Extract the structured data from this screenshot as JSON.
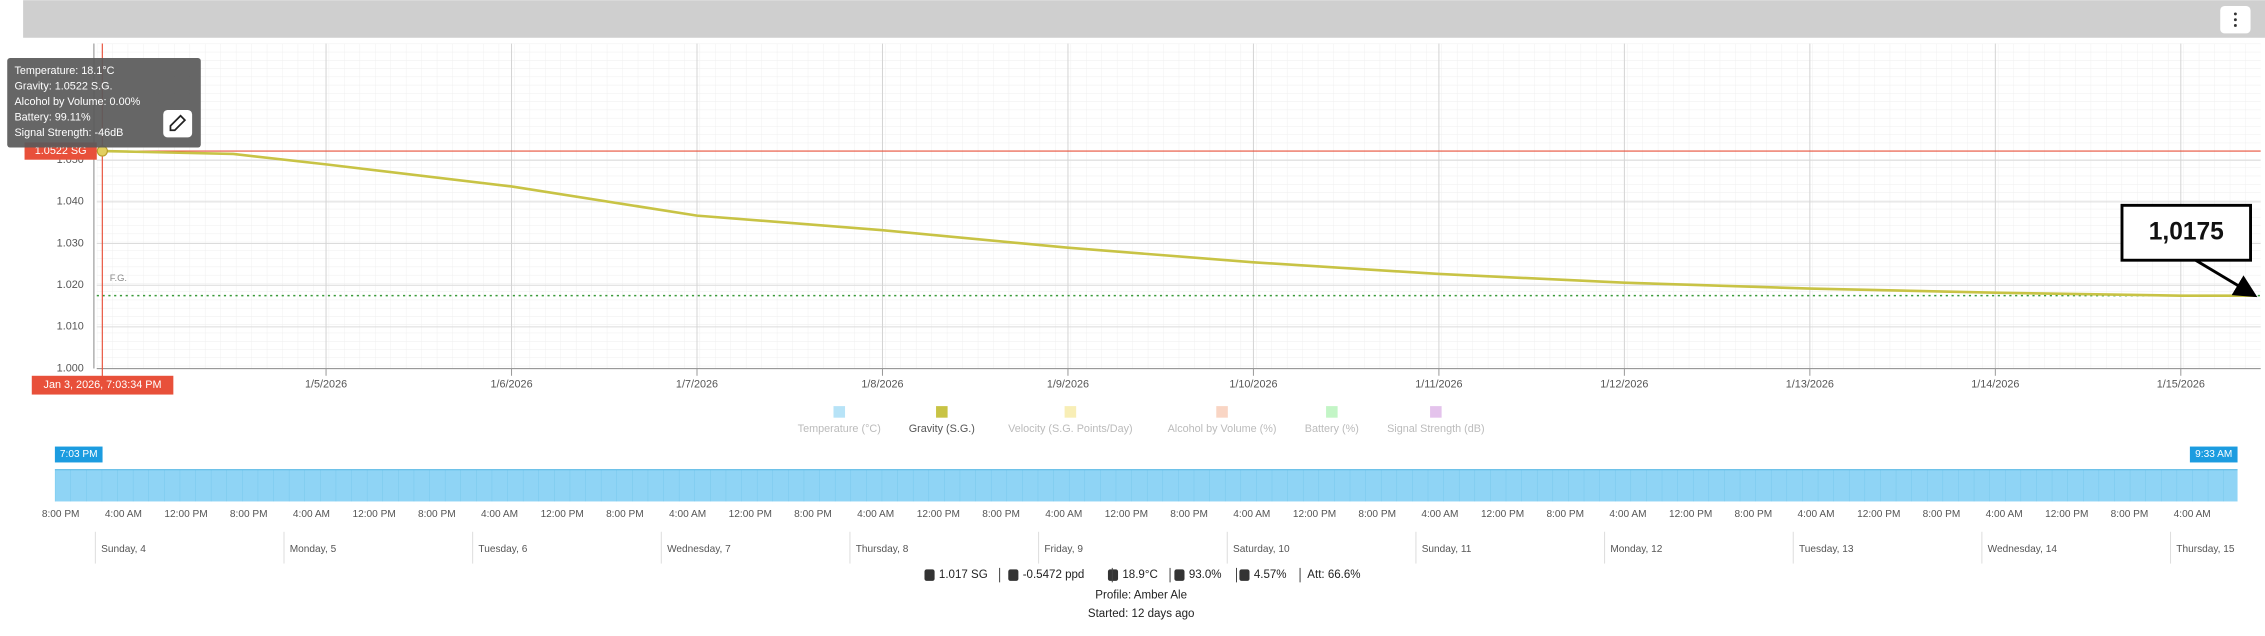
{
  "chart_data": {
    "type": "line",
    "x": [
      "2026-01-03T19:03",
      "2026-01-04T00:00",
      "2026-01-04T12:00",
      "2026-01-05T00:00",
      "2026-01-06T00:00",
      "2026-01-07T00:00",
      "2026-01-08T00:00",
      "2026-01-09T00:00",
      "2026-01-10T00:00",
      "2026-01-11T00:00",
      "2026-01-12T00:00",
      "2026-01-13T00:00",
      "2026-01-14T00:00",
      "2026-01-15T00:00",
      "2026-01-15T09:33"
    ],
    "series": [
      {
        "name": "Temperature (°C)",
        "color": "#b7e3f7",
        "visible": false
      },
      {
        "name": "Gravity (S.G.)",
        "color": "#c8c345",
        "visible": true,
        "values": [
          1.0522,
          1.052,
          1.0515,
          1.049,
          1.0437,
          1.0367,
          1.0332,
          1.029,
          1.0255,
          1.0227,
          1.0206,
          1.0192,
          1.0182,
          1.0175,
          1.0175
        ]
      },
      {
        "name": "Velocity (S.G. Points/Day)",
        "color": "#f8eeb6",
        "visible": false
      },
      {
        "name": "Alcohol by Volume (%)",
        "color": "#f9d5c4",
        "visible": false
      },
      {
        "name": "Battery (%)",
        "color": "#c3f5c6",
        "visible": false
      },
      {
        "name": "Signal Strength (dB)",
        "color": "#e4c3ec",
        "visible": false
      }
    ],
    "xlim": [
      "2026-01-03T18:20",
      "2026-01-15T10:20"
    ],
    "xticks": [
      {
        "value": "2026-01-05T00:00",
        "label": "1/5/2026"
      },
      {
        "value": "2026-01-06T00:00",
        "label": "1/6/2026"
      },
      {
        "value": "2026-01-07T00:00",
        "label": "1/7/2026"
      },
      {
        "value": "2026-01-08T00:00",
        "label": "1/8/2026"
      },
      {
        "value": "2026-01-09T00:00",
        "label": "1/9/2026"
      },
      {
        "value": "2026-01-10T00:00",
        "label": "1/10/2026"
      },
      {
        "value": "2026-01-11T00:00",
        "label": "1/11/2026"
      },
      {
        "value": "2026-01-12T00:00",
        "label": "1/12/2026"
      },
      {
        "value": "2026-01-13T00:00",
        "label": "1/13/2026"
      },
      {
        "value": "2026-01-14T00:00",
        "label": "1/14/2026"
      },
      {
        "value": "2026-01-15T00:00",
        "label": "1/15/2026"
      }
    ],
    "ylim": [
      1.0,
      1.078
    ],
    "yticks": [
      {
        "value": 1.0,
        "label": "1.000"
      },
      {
        "value": 1.01,
        "label": "1.010"
      },
      {
        "value": 1.02,
        "label": "1.020"
      },
      {
        "value": 1.03,
        "label": "1.030"
      },
      {
        "value": 1.04,
        "label": "1.040"
      },
      {
        "value": 1.05,
        "label": "1.050"
      }
    ],
    "grid": true,
    "final_gravity": {
      "label": "F.G.",
      "value": 1.0175,
      "color": "#3a9a3a"
    },
    "annotation": {
      "text": "1,0175",
      "value": 1.0175
    },
    "cursor": {
      "x": "2026-01-03T19:03",
      "y": 1.0522,
      "x_label": "Jan 3, 2026, 7:03:34 PM",
      "y_label": "1.0522 SG",
      "color": "#e8503a",
      "tooltip": [
        "Temperature: 18.1°C",
        "Gravity: 1.0522 S.G.",
        "Alcohol by Volume: 0.00%",
        "Battery: 99.11%",
        "Signal Strength: -46dB"
      ]
    }
  },
  "navigator": {
    "start_label": "7:03 PM",
    "end_label": "9:33 AM",
    "time_labels": [
      "8:00 PM",
      "4:00 AM",
      "12:00 PM",
      "8:00 PM",
      "4:00 AM",
      "12:00 PM",
      "8:00 PM",
      "4:00 AM",
      "12:00 PM",
      "8:00 PM",
      "4:00 AM",
      "12:00 PM",
      "8:00 PM",
      "4:00 AM",
      "12:00 PM",
      "8:00 PM",
      "4:00 AM",
      "12:00 PM",
      "8:00 PM",
      "4:00 AM",
      "12:00 PM",
      "8:00 PM",
      "4:00 AM",
      "12:00 PM",
      "8:00 PM",
      "4:00 AM",
      "12:00 PM",
      "8:00 PM",
      "4:00 AM",
      "12:00 PM",
      "8:00 PM",
      "4:00 AM",
      "12:00 PM",
      "8:00 PM",
      "4:00 AM"
    ],
    "day_labels": [
      "Sunday, 4",
      "Monday, 5",
      "Tuesday, 6",
      "Wednesday, 7",
      "Thursday, 8",
      "Friday, 9",
      "Saturday, 10",
      "Sunday, 11",
      "Monday, 12",
      "Tuesday, 13",
      "Wednesday, 14",
      "Thursday, 15"
    ]
  },
  "footer": {
    "stats": [
      "1.017 SG",
      "-0.5472 ppd",
      "18.9°C",
      "93.0%",
      "4.57%",
      "Att: 66.6%"
    ],
    "profile": "Profile: Amber Ale",
    "started": "Started: 12 days ago"
  }
}
